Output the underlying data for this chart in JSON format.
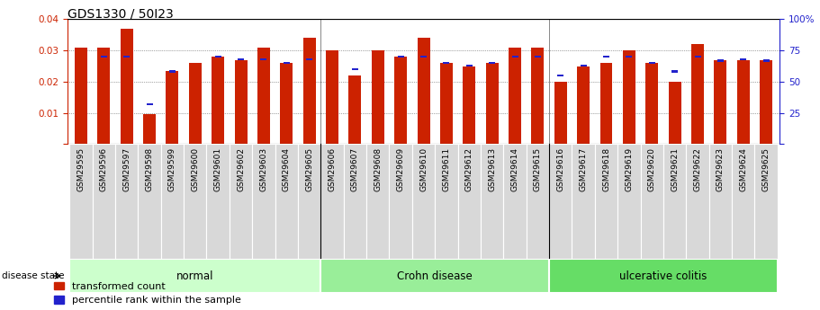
{
  "title": "GDS1330 / 50I23",
  "samples": [
    "GSM29595",
    "GSM29596",
    "GSM29597",
    "GSM29598",
    "GSM29599",
    "GSM29600",
    "GSM29601",
    "GSM29602",
    "GSM29603",
    "GSM29604",
    "GSM29605",
    "GSM29606",
    "GSM29607",
    "GSM29608",
    "GSM29609",
    "GSM29610",
    "GSM29611",
    "GSM29612",
    "GSM29613",
    "GSM29614",
    "GSM29615",
    "GSM29616",
    "GSM29617",
    "GSM29618",
    "GSM29619",
    "GSM29620",
    "GSM29621",
    "GSM29622",
    "GSM29623",
    "GSM29624",
    "GSM29625"
  ],
  "transformed_count": [
    0.031,
    0.031,
    0.037,
    0.0095,
    0.0235,
    0.026,
    0.028,
    0.027,
    0.031,
    0.026,
    0.034,
    0.03,
    0.022,
    0.03,
    0.028,
    0.034,
    0.026,
    0.025,
    0.026,
    0.031,
    0.031,
    0.02,
    0.025,
    0.026,
    0.03,
    0.026,
    0.02,
    0.032,
    0.027,
    0.027,
    0.027
  ],
  "percentile_rank": [
    0.0,
    70.0,
    70.0,
    32.0,
    58.0,
    0.0,
    70.0,
    68.0,
    68.0,
    65.0,
    68.0,
    0.0,
    60.0,
    0.0,
    70.0,
    70.0,
    65.0,
    63.0,
    65.0,
    70.0,
    70.0,
    55.0,
    63.0,
    70.0,
    70.0,
    65.0,
    58.0,
    70.0,
    67.0,
    68.0,
    67.0
  ],
  "groups": [
    {
      "label": "normal",
      "start": 0,
      "end": 10,
      "color": "#ccffcc"
    },
    {
      "label": "Crohn disease",
      "start": 11,
      "end": 20,
      "color": "#99ee99"
    },
    {
      "label": "ulcerative colitis",
      "start": 21,
      "end": 30,
      "color": "#66dd66"
    }
  ],
  "bar_color_red": "#cc2200",
  "bar_color_blue": "#2222cc",
  "ylim_left": [
    0,
    0.04
  ],
  "ylim_right": [
    0,
    100
  ],
  "yticks_left": [
    0,
    0.01,
    0.02,
    0.03,
    0.04
  ],
  "yticks_right": [
    0,
    25,
    50,
    75,
    100
  ],
  "background_color": "#ffffff",
  "tick_bg_color": "#cccccc",
  "tick_fontsize": 6.5,
  "group_sep_color": "#000000"
}
